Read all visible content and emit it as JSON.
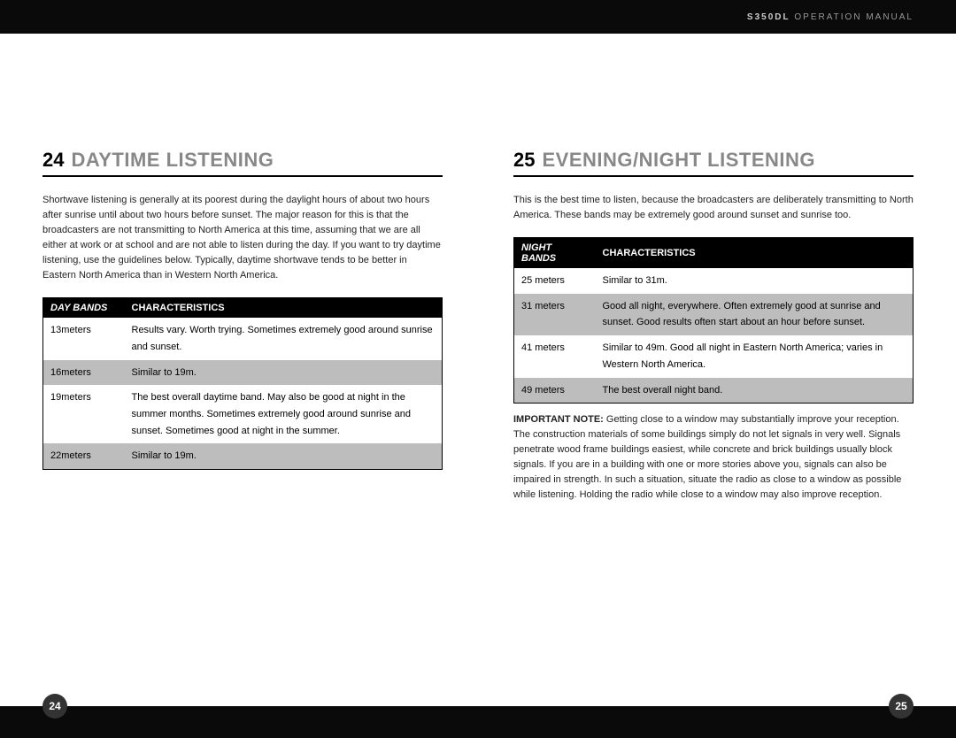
{
  "header": {
    "model": "S350DL",
    "doc_type": "OPERATION MANUAL"
  },
  "left": {
    "section_num": "24",
    "section_title": "DAYTIME LISTENING",
    "intro": "Shortwave listening is generally at its poorest during the daylight hours of about two hours after sunrise until about two hours before sunset. The major reason for this is that the broadcasters are not transmitting to North America at this time, assuming that we are all either at work or at school and are not able to listen during the day. If you want to try daytime listening, use the guidelines below. Typically, daytime shortwave tends to be better in Eastern North America than in Western North America.",
    "table": {
      "col1": "DAY BANDS",
      "col2": "CHARACTERISTICS",
      "rows": [
        {
          "band": "13meters",
          "char": "Results vary. Worth trying. Sometimes extremely good around sunrise and sunset.",
          "shaded": false
        },
        {
          "band": "16meters",
          "char": "Similar to 19m.",
          "shaded": true
        },
        {
          "band": "19meters",
          "char": "The best overall daytime band. May also be good at night in the summer months. Sometimes extremely good around sunrise and sunset. Sometimes good at night in the summer.",
          "shaded": false
        },
        {
          "band": "22meters",
          "char": "Similar to 19m.",
          "shaded": true
        }
      ]
    },
    "page_num": "24"
  },
  "right": {
    "section_num": "25",
    "section_title": "EVENING/NIGHT LISTENING",
    "intro": "This is the best time to listen, because the broadcasters are deliberately transmitting to North America. These bands may be extremely good around sunset and sunrise too.",
    "table": {
      "col1": "NIGHT BANDS",
      "col2": "CHARACTERISTICS",
      "rows": [
        {
          "band": "25 meters",
          "char": "Similar to 31m.",
          "shaded": false
        },
        {
          "band": "31 meters",
          "char": "Good all night, everywhere. Often extremely good at sunrise and sunset. Good results often start about an hour before sunset.",
          "shaded": true
        },
        {
          "band": "41 meters",
          "char": "Similar to 49m. Good all night in Eastern North America; varies in Western North America.",
          "shaded": false
        },
        {
          "band": "49 meters",
          "char": "The best overall night band.",
          "shaded": true
        }
      ]
    },
    "note_label": "IMPORTANT NOTE:",
    "note_body": " Getting close to a window may substantially improve your reception. The construction materials of some buildings simply do not let signals in very well. Signals penetrate wood frame buildings easiest, while concrete and brick buildings usually block signals. If you are in a building with one or more stories above you, signals can also be impaired in strength. In such a situation, situate the radio as close to a window as possible while listening. Holding the radio while close to a window may also improve reception.",
    "page_num": "25"
  }
}
